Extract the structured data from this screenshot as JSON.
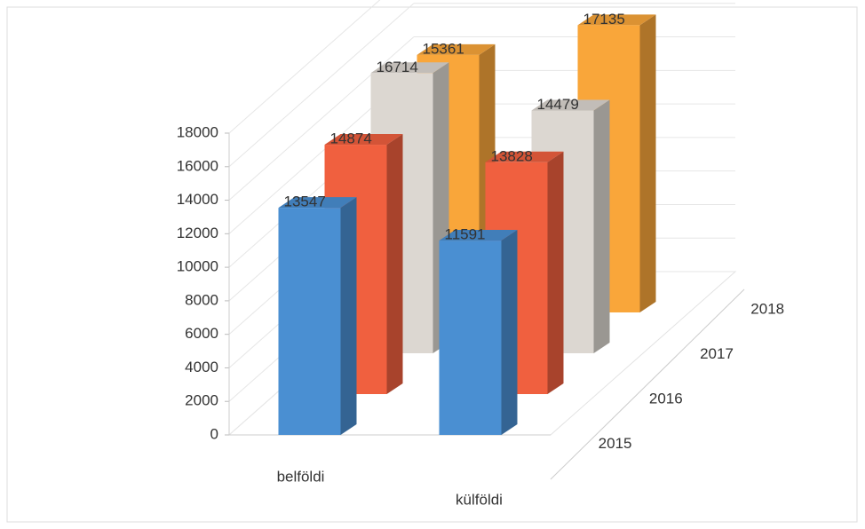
{
  "chart_data": {
    "type": "bar",
    "categories": [
      "belföldi",
      "külföldi"
    ],
    "series": [
      {
        "name": "2015",
        "color": "#4a8fd2",
        "values": [
          13547,
          11591
        ]
      },
      {
        "name": "2016",
        "color": "#f0603f",
        "values": [
          14874,
          13828
        ]
      },
      {
        "name": "2017",
        "color": "#dcd7d1",
        "values": [
          16714,
          14479
        ]
      },
      {
        "name": "2018",
        "color": "#f9a63a",
        "values": [
          15361,
          17135
        ]
      }
    ],
    "ylim": [
      0,
      18000
    ],
    "yticks": [
      0,
      2000,
      4000,
      6000,
      8000,
      10000,
      12000,
      14000,
      16000,
      18000
    ],
    "grid": true
  }
}
